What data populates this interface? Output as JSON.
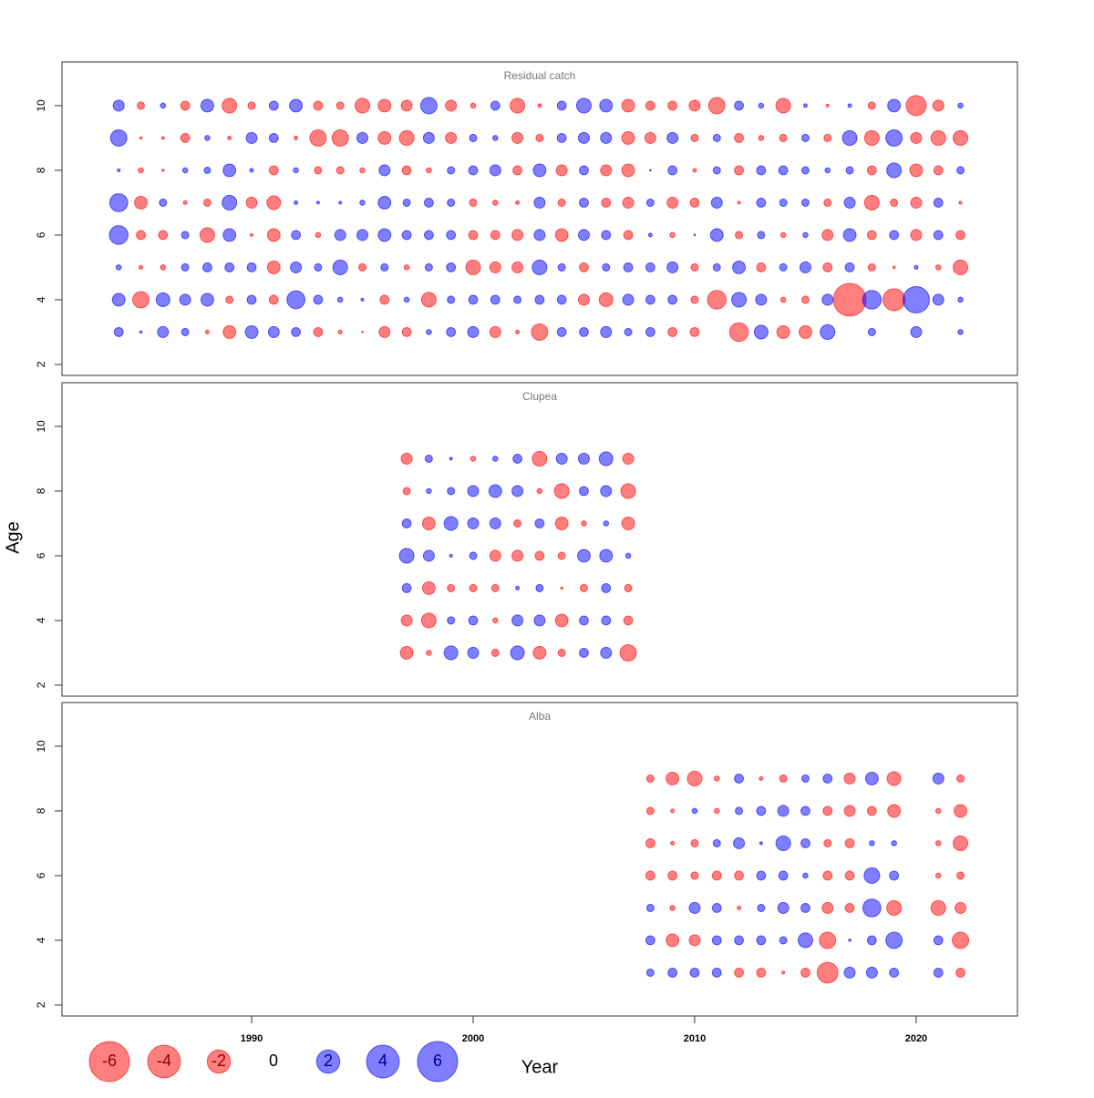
{
  "chart_data": [
    {
      "type": "bubble",
      "title": "Residual catch",
      "x": [
        1984,
        1985,
        1986,
        1987,
        1988,
        1989,
        1990,
        1991,
        1992,
        1993,
        1994,
        1995,
        1996,
        1997,
        1998,
        1999,
        2000,
        2001,
        2002,
        2003,
        2004,
        2005,
        2006,
        2007,
        2008,
        2009,
        2010,
        2011,
        2012,
        2013,
        2014,
        2015,
        2016,
        2017,
        2018,
        2019,
        2020,
        2021,
        2022
      ],
      "y": [
        3,
        4,
        5,
        6,
        7,
        8,
        9,
        10
      ],
      "values": [
        [
          0.3,
          0.02,
          0.45,
          0.2,
          -0.05,
          -0.6,
          0.6,
          0.45,
          0.3,
          -0.3,
          -0.05,
          -0.01,
          -0.45,
          -0.3,
          0.1,
          0.3,
          0.45,
          -0.45,
          -0.05,
          -1.0,
          0.3,
          0.3,
          0.45,
          0.2,
          0.3,
          -0.3,
          -0.3,
          null,
          -1.3,
          0.7,
          -0.6,
          -0.6,
          0.8,
          null,
          0.2,
          null,
          0.45,
          null,
          0.1
        ],
        [
          0.6,
          -1.0,
          0.7,
          0.45,
          0.6,
          -0.2,
          0.3,
          -0.3,
          1.2,
          0.3,
          0.1,
          0.03,
          -0.3,
          0.1,
          -0.8,
          0.2,
          0.3,
          0.3,
          0.2,
          0.3,
          0.3,
          -0.45,
          -0.7,
          0.45,
          0.3,
          0.3,
          -0.2,
          -1.3,
          0.8,
          0.45,
          -0.1,
          -0.2,
          0.45,
          -4.0,
          1.3,
          -1.8,
          2.6,
          0.45,
          0.1
        ],
        [
          0.1,
          -0.05,
          -0.1,
          0.2,
          0.3,
          0.3,
          0.3,
          -0.6,
          0.45,
          0.2,
          0.8,
          -0.2,
          0.2,
          -0.1,
          0.2,
          0.3,
          -0.8,
          -0.45,
          -0.45,
          0.8,
          0.2,
          -0.3,
          0.2,
          0.3,
          0.3,
          0.45,
          -0.2,
          0.2,
          0.6,
          -0.3,
          0.2,
          0.45,
          -0.3,
          0.3,
          -0.2,
          -0.02,
          0.05,
          -0.1,
          -0.8
        ],
        [
          1.3,
          -0.3,
          -0.3,
          0.2,
          -0.8,
          0.6,
          -0.03,
          -0.6,
          0.3,
          -0.1,
          0.45,
          0.45,
          0.6,
          0.3,
          0.3,
          0.3,
          -0.3,
          -0.3,
          -0.45,
          0.45,
          -0.6,
          0.45,
          0.3,
          -0.3,
          0.05,
          -0.1,
          0.01,
          0.6,
          -0.2,
          0.2,
          -0.1,
          0.1,
          -0.45,
          0.6,
          -0.3,
          0.3,
          -0.45,
          0.3,
          -0.3
        ],
        [
          1.2,
          -0.6,
          0.2,
          -0.05,
          -0.2,
          0.8,
          -0.45,
          -0.7,
          0.05,
          0.03,
          0.03,
          0.1,
          0.6,
          0.2,
          0.3,
          0.2,
          -0.2,
          -0.1,
          -0.05,
          0.45,
          -0.2,
          0.3,
          -0.3,
          -0.45,
          0.2,
          -0.45,
          -0.3,
          0.45,
          -0.03,
          0.3,
          0.2,
          0.2,
          -0.2,
          0.45,
          -0.8,
          -0.2,
          -0.45,
          0.3,
          -0.03
        ],
        [
          0.03,
          -0.1,
          -0.02,
          0.1,
          0.15,
          0.6,
          0.05,
          -0.3,
          0.1,
          -0.2,
          -0.2,
          -0.1,
          0.45,
          -0.3,
          -0.1,
          0.2,
          0.3,
          0.45,
          -0.3,
          0.6,
          -0.45,
          0.3,
          -0.45,
          -0.6,
          0.01,
          0.3,
          -0.05,
          0.2,
          -0.3,
          0.3,
          0.3,
          0.2,
          0.1,
          0.2,
          -0.3,
          0.8,
          -0.6,
          -0.3,
          0.2
        ],
        [
          1.0,
          -0.02,
          -0.03,
          -0.3,
          0.1,
          -0.05,
          0.45,
          0.3,
          -0.05,
          -1.0,
          -1.0,
          0.45,
          -0.6,
          -0.8,
          0.45,
          -0.45,
          0.2,
          0.1,
          -0.45,
          -0.2,
          0.3,
          0.45,
          0.45,
          -0.6,
          -0.45,
          0.45,
          -0.2,
          0.2,
          -0.3,
          -0.1,
          -0.2,
          0.2,
          -0.2,
          0.8,
          -0.8,
          1.0,
          -0.45,
          -0.8,
          -0.8
        ],
        [
          0.45,
          -0.2,
          0.1,
          -0.3,
          0.6,
          -0.8,
          -0.2,
          0.3,
          0.6,
          -0.3,
          -0.2,
          -0.8,
          -0.6,
          -0.45,
          1.0,
          -0.45,
          -0.1,
          0.3,
          -0.8,
          -0.05,
          0.3,
          0.8,
          0.6,
          -0.6,
          -0.3,
          -0.3,
          -0.45,
          -1.0,
          0.3,
          0.1,
          -0.8,
          0.05,
          -0.03,
          0.05,
          -0.2,
          0.6,
          -1.5,
          -0.45,
          0.1
        ]
      ],
      "positive_color": "#0000ff",
      "negative_color": "#ff0000",
      "xlim": [
        1981.44,
        2024.57
      ],
      "ylim": [
        1.66,
        11.35
      ],
      "yticks": [
        2,
        4,
        6,
        8,
        10
      ]
    },
    {
      "type": "bubble",
      "title": "Clupea",
      "x": [
        1997,
        1998,
        1999,
        2000,
        2001,
        2002,
        2003,
        2004,
        2005,
        2006,
        2007
      ],
      "y": [
        3,
        4,
        5,
        6,
        7,
        8,
        9
      ],
      "values": [
        [
          -0.6,
          -0.1,
          0.7,
          0.45,
          -0.2,
          0.7,
          -0.6,
          -0.2,
          0.3,
          0.45,
          -1.0
        ],
        [
          -0.45,
          -0.8,
          0.2,
          0.3,
          -0.1,
          0.45,
          0.45,
          -0.6,
          0.3,
          0.3,
          -0.3
        ],
        [
          0.3,
          -0.6,
          -0.2,
          -0.2,
          -0.2,
          0.05,
          0.2,
          -0.02,
          -0.2,
          0.3,
          -0.2
        ],
        [
          0.8,
          0.45,
          0.03,
          0.2,
          -0.45,
          -0.45,
          -0.3,
          -0.2,
          0.6,
          0.6,
          0.1
        ],
        [
          0.3,
          -0.6,
          0.7,
          0.45,
          0.45,
          -0.2,
          0.3,
          -0.6,
          -0.1,
          0.1,
          -0.6
        ],
        [
          -0.2,
          0.1,
          0.2,
          0.45,
          0.6,
          0.45,
          -0.1,
          -0.8,
          0.3,
          0.45,
          -0.8
        ],
        [
          -0.45,
          0.2,
          0.03,
          -0.1,
          0.1,
          0.3,
          -0.8,
          0.45,
          0.45,
          0.7,
          -0.45
        ]
      ],
      "positive_color": "#0000ff",
      "negative_color": "#ff0000",
      "xlim": [
        1981.44,
        2024.57
      ],
      "ylim": [
        1.66,
        11.35
      ],
      "yticks": [
        2,
        4,
        6,
        8,
        10
      ]
    },
    {
      "type": "bubble",
      "title": "Alba",
      "x": [
        2008,
        2009,
        2010,
        2011,
        2012,
        2013,
        2014,
        2015,
        2016,
        2017,
        2018,
        2019,
        2020,
        2021,
        2022
      ],
      "y": [
        3,
        4,
        5,
        6,
        7,
        8,
        9
      ],
      "values": [
        [
          0.2,
          0.3,
          0.3,
          0.3,
          -0.3,
          -0.3,
          -0.03,
          -0.3,
          -1.6,
          0.45,
          0.45,
          0.3,
          null,
          0.3,
          -0.3
        ],
        [
          0.3,
          -0.6,
          -0.45,
          0.3,
          0.3,
          0.3,
          0.2,
          0.8,
          -1.0,
          0.02,
          0.3,
          1.0,
          null,
          0.3,
          -1.0
        ],
        [
          0.2,
          -0.1,
          0.45,
          0.3,
          -0.05,
          0.2,
          0.45,
          0.3,
          -0.45,
          -0.3,
          1.2,
          -0.8,
          null,
          -0.8,
          -0.45
        ],
        [
          -0.3,
          -0.3,
          -0.2,
          -0.3,
          -0.3,
          0.3,
          0.3,
          0.1,
          -0.3,
          -0.3,
          0.9,
          0.3,
          null,
          -0.1,
          -0.2
        ],
        [
          -0.3,
          -0.05,
          -0.2,
          0.2,
          0.45,
          0.03,
          0.8,
          0.3,
          -0.2,
          -0.3,
          0.1,
          0.1,
          null,
          -0.1,
          -0.8
        ],
        [
          -0.2,
          -0.05,
          0.1,
          -0.1,
          0.2,
          0.3,
          0.45,
          0.3,
          -0.3,
          -0.45,
          -0.3,
          -0.6,
          null,
          -0.1,
          -0.6
        ],
        [
          -0.2,
          -0.6,
          -0.8,
          -0.1,
          0.3,
          -0.05,
          -0.2,
          0.2,
          0.3,
          -0.45,
          0.6,
          -0.7,
          null,
          0.45,
          -0.2
        ]
      ],
      "positive_color": "#0000ff",
      "negative_color": "#ff0000",
      "xlim": [
        1981.44,
        2024.57
      ],
      "ylim": [
        1.66,
        11.35
      ],
      "yticks": [
        2,
        4,
        6,
        8,
        10
      ],
      "xticks": [
        1990,
        2000,
        2010,
        2020
      ]
    }
  ],
  "xlabel": "Year",
  "ylabel": "Age",
  "legend": {
    "values": [
      -6,
      -4,
      -2,
      0,
      2,
      4,
      6
    ]
  }
}
